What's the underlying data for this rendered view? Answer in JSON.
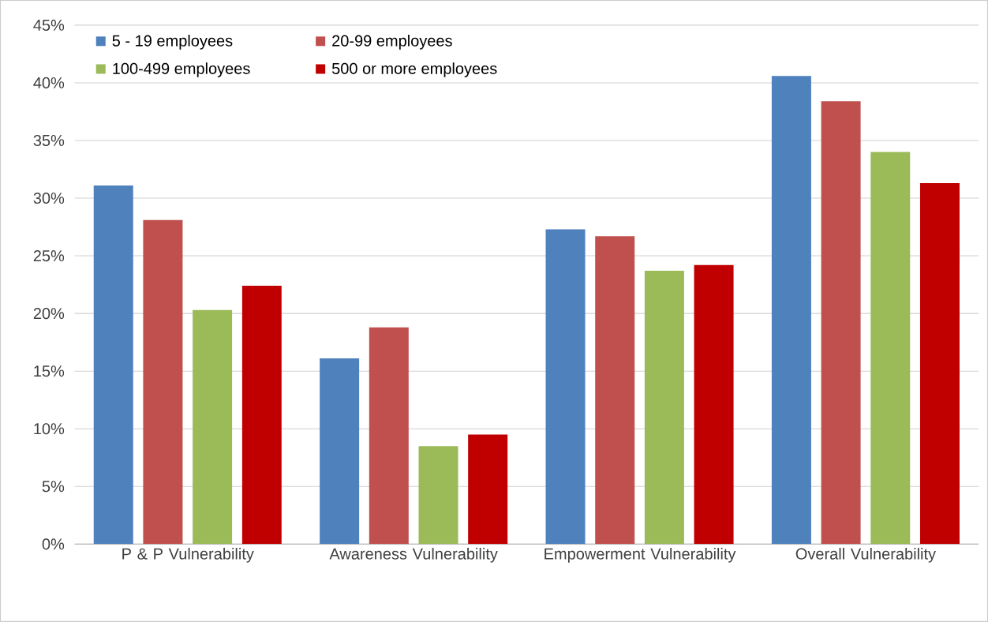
{
  "chart_data": {
    "type": "bar",
    "categories": [
      "P & P Vulnerability",
      "Awareness Vulnerability",
      "Empowerment Vulnerability",
      "Overall Vulnerability"
    ],
    "series": [
      {
        "name": "5 - 19 employees",
        "color": "#4f81bd",
        "values": [
          31.1,
          16.1,
          27.3,
          40.6
        ]
      },
      {
        "name": "20-99  employees",
        "color": "#c0504d",
        "values": [
          28.1,
          18.8,
          26.7,
          38.4
        ]
      },
      {
        "name": "100-499 employees",
        "color": "#9bbb59",
        "values": [
          20.3,
          8.5,
          23.7,
          34.0
        ]
      },
      {
        "name": "500 or more employees",
        "color": "#c00000",
        "values": [
          22.4,
          9.5,
          24.2,
          31.3
        ]
      }
    ],
    "ylim": [
      0,
      45
    ],
    "yticks": [
      {
        "value": 0,
        "label": "0%"
      },
      {
        "value": 5,
        "label": "5%"
      },
      {
        "value": 10,
        "label": "10%"
      },
      {
        "value": 15,
        "label": "15%"
      },
      {
        "value": 20,
        "label": "20%"
      },
      {
        "value": 25,
        "label": "25%"
      },
      {
        "value": 30,
        "label": "30%"
      },
      {
        "value": 35,
        "label": "35%"
      },
      {
        "value": 40,
        "label": "40%"
      },
      {
        "value": 45,
        "label": "45%"
      }
    ],
    "grid": "y",
    "legend": "top left"
  }
}
